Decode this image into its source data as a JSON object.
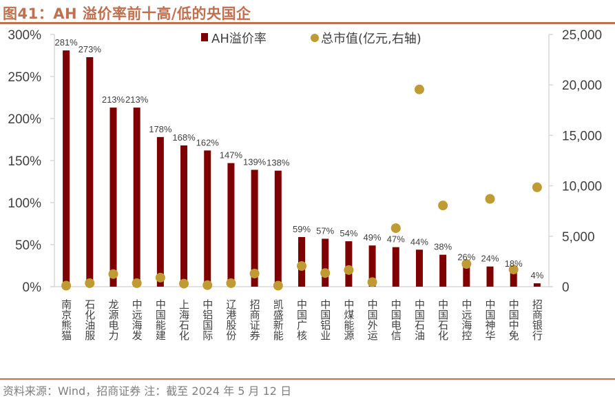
{
  "header": {
    "title": "图41：AH 溢价率前十高/低的央国企"
  },
  "footer": {
    "source": "资料来源：Wind，招商证券   注：截至 2024 年 5 月 12 日"
  },
  "colors": {
    "title": "#c0704f",
    "bar": "#7f0000",
    "dot": "#c09a32",
    "axis": "#d9d9d9",
    "text": "#404040"
  },
  "chart_data": {
    "type": "bar",
    "title": "AH 溢价率前十高/低的央国企",
    "categories": [
      "南京熊猫",
      "石化油服",
      "龙源电力",
      "中远海发",
      "中国能建",
      "上海石化",
      "中铝国际",
      "辽港股份",
      "招商证券",
      "凯盛新能",
      "中国广核",
      "中国铝业",
      "中煤能源",
      "中国外运",
      "中国电信",
      "中国石油",
      "中国石化",
      "中远海控",
      "中国神华",
      "中国中免",
      "招商银行"
    ],
    "series": [
      {
        "name": "AH溢价率",
        "type": "bar",
        "axis": "left",
        "values": [
          281,
          273,
          213,
          213,
          178,
          168,
          162,
          147,
          139,
          138,
          59,
          57,
          54,
          49,
          47,
          44,
          38,
          26,
          24,
          18,
          4
        ],
        "labels": [
          "281%",
          "273%",
          "213%",
          "213%",
          "178%",
          "168%",
          "162%",
          "147%",
          "139%",
          "138%",
          "59%",
          "57%",
          "54%",
          "49%",
          "47%",
          "44%",
          "38%",
          "26%",
          "24%",
          "18%",
          "4%"
        ]
      },
      {
        "name": "总市值(亿元,右轴)",
        "type": "scatter",
        "axis": "right",
        "values": [
          100,
          350,
          1250,
          350,
          900,
          300,
          150,
          350,
          1300,
          100,
          2050,
          1350,
          1650,
          450,
          5800,
          19550,
          8050,
          2250,
          8700,
          1700,
          9850
        ]
      }
    ],
    "y_left": {
      "lim": [
        0,
        300
      ],
      "ticks": [
        0,
        50,
        100,
        150,
        200,
        250,
        300
      ],
      "tick_labels": [
        "0%",
        "50%",
        "100%",
        "150%",
        "200%",
        "250%",
        "300%"
      ]
    },
    "y_right": {
      "lim": [
        0,
        25000
      ],
      "ticks": [
        0,
        5000,
        10000,
        15000,
        20000,
        25000
      ],
      "tick_labels": [
        "0",
        "5,000",
        "10,000",
        "15,000",
        "20,000",
        "25,000"
      ]
    },
    "xlabel": "",
    "ylabel": "",
    "grid": false,
    "legend": {
      "position": "top-right",
      "entries": [
        "AH溢价率",
        "总市值(亿元,右轴)"
      ]
    }
  }
}
